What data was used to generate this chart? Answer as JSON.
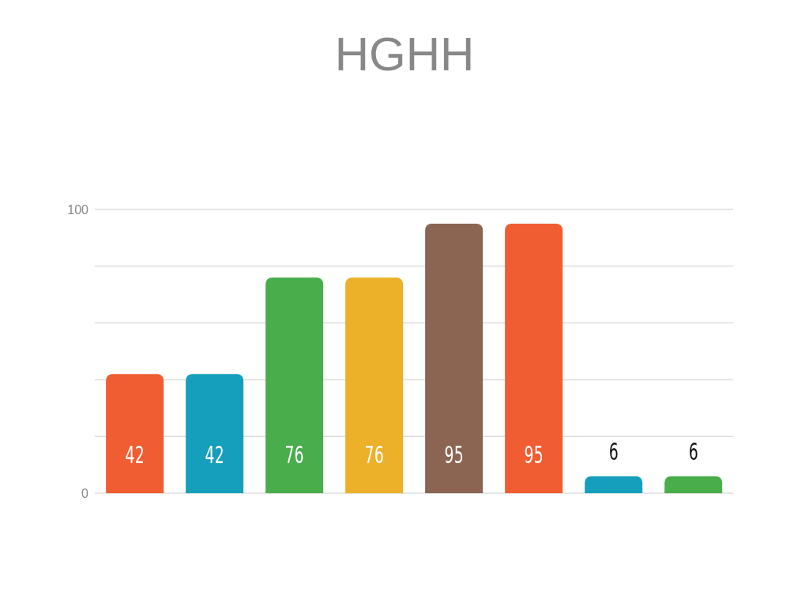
{
  "chart_data": {
    "type": "bar",
    "title": "HGHH",
    "categories": [
      null,
      null,
      null,
      null,
      null,
      null,
      null,
      null
    ],
    "values": [
      42,
      42,
      76,
      76,
      95,
      95,
      6,
      6
    ],
    "colors": [
      "#f05d32",
      "#159fbc",
      "#48ad4a",
      "#ecb128",
      "#8b6552",
      "#f05d32",
      "#159fbc",
      "#48ad4a"
    ],
    "ylim": [
      0,
      100
    ],
    "yticks": [
      0,
      {
        "value": 20,
        "label": null
      },
      {
        "value": 40,
        "label": null
      },
      {
        "value": 60,
        "label": null
      },
      {
        "value": 80,
        "label": null
      },
      100
    ],
    "grid": "y",
    "data_labels": true
  }
}
